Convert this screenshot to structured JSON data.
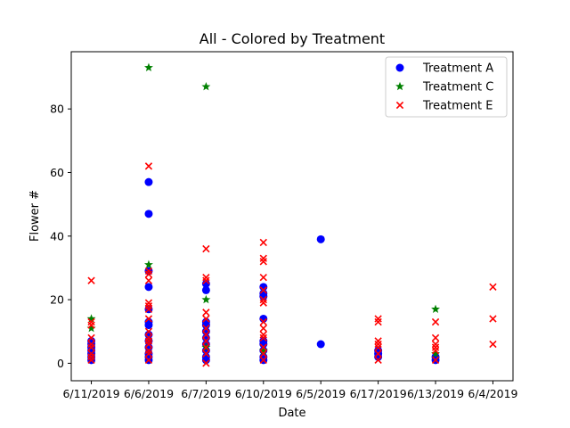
{
  "chart_data": {
    "type": "scatter",
    "title": "All - Colored by Treatment",
    "xlabel": "Date",
    "ylabel": "Flower #",
    "categories": [
      "6/11/2019",
      "6/6/2019",
      "6/7/2019",
      "6/10/2019",
      "6/5/2019",
      "6/17/2019",
      "6/13/2019",
      "6/4/2019"
    ],
    "ylim": [
      -5.5,
      98
    ],
    "yticks": [
      0,
      20,
      40,
      60,
      80
    ],
    "legend_position": "top-right",
    "grid": false,
    "series": [
      {
        "name": "Treatment A",
        "marker": "circle",
        "color": "#0000ff",
        "points": [
          [
            "6/11/2019",
            1
          ],
          [
            "6/11/2019",
            2
          ],
          [
            "6/11/2019",
            3
          ],
          [
            "6/11/2019",
            4
          ],
          [
            "6/11/2019",
            5
          ],
          [
            "6/11/2019",
            6
          ],
          [
            "6/11/2019",
            7
          ],
          [
            "6/6/2019",
            1
          ],
          [
            "6/6/2019",
            2
          ],
          [
            "6/6/2019",
            3
          ],
          [
            "6/6/2019",
            5
          ],
          [
            "6/6/2019",
            7
          ],
          [
            "6/6/2019",
            9
          ],
          [
            "6/6/2019",
            12
          ],
          [
            "6/6/2019",
            13
          ],
          [
            "6/6/2019",
            17
          ],
          [
            "6/6/2019",
            24
          ],
          [
            "6/6/2019",
            29
          ],
          [
            "6/6/2019",
            47
          ],
          [
            "6/6/2019",
            57
          ],
          [
            "6/7/2019",
            1
          ],
          [
            "6/7/2019",
            2
          ],
          [
            "6/7/2019",
            4
          ],
          [
            "6/7/2019",
            6
          ],
          [
            "6/7/2019",
            8
          ],
          [
            "6/7/2019",
            10
          ],
          [
            "6/7/2019",
            12
          ],
          [
            "6/7/2019",
            13
          ],
          [
            "6/7/2019",
            23
          ],
          [
            "6/7/2019",
            25
          ],
          [
            "6/10/2019",
            1
          ],
          [
            "6/10/2019",
            2
          ],
          [
            "6/10/2019",
            4
          ],
          [
            "6/10/2019",
            6
          ],
          [
            "6/10/2019",
            7
          ],
          [
            "6/10/2019",
            14
          ],
          [
            "6/10/2019",
            21
          ],
          [
            "6/10/2019",
            22
          ],
          [
            "6/10/2019",
            24
          ],
          [
            "6/5/2019",
            6
          ],
          [
            "6/5/2019",
            39
          ],
          [
            "6/17/2019",
            2
          ],
          [
            "6/17/2019",
            3
          ],
          [
            "6/17/2019",
            4
          ],
          [
            "6/13/2019",
            1
          ],
          [
            "6/13/2019",
            2
          ]
        ]
      },
      {
        "name": "Treatment C",
        "marker": "star",
        "color": "#008000",
        "points": [
          [
            "6/11/2019",
            11
          ],
          [
            "6/11/2019",
            14
          ],
          [
            "6/6/2019",
            31
          ],
          [
            "6/6/2019",
            93
          ],
          [
            "6/7/2019",
            5
          ],
          [
            "6/7/2019",
            20
          ],
          [
            "6/7/2019",
            87
          ],
          [
            "6/10/2019",
            4
          ],
          [
            "6/13/2019",
            3
          ],
          [
            "6/13/2019",
            17
          ]
        ]
      },
      {
        "name": "Treatment E",
        "marker": "x",
        "color": "#ff0000",
        "points": [
          [
            "6/11/2019",
            1
          ],
          [
            "6/11/2019",
            2
          ],
          [
            "6/11/2019",
            3
          ],
          [
            "6/11/2019",
            5
          ],
          [
            "6/11/2019",
            6
          ],
          [
            "6/11/2019",
            8
          ],
          [
            "6/11/2019",
            12
          ],
          [
            "6/11/2019",
            13
          ],
          [
            "6/11/2019",
            26
          ],
          [
            "6/6/2019",
            1
          ],
          [
            "6/6/2019",
            3
          ],
          [
            "6/6/2019",
            4
          ],
          [
            "6/6/2019",
            6
          ],
          [
            "6/6/2019",
            7
          ],
          [
            "6/6/2019",
            8
          ],
          [
            "6/6/2019",
            10
          ],
          [
            "6/6/2019",
            14
          ],
          [
            "6/6/2019",
            17
          ],
          [
            "6/6/2019",
            18
          ],
          [
            "6/6/2019",
            19
          ],
          [
            "6/6/2019",
            26
          ],
          [
            "6/6/2019",
            28
          ],
          [
            "6/6/2019",
            29
          ],
          [
            "6/6/2019",
            62
          ],
          [
            "6/7/2019",
            0
          ],
          [
            "6/7/2019",
            3
          ],
          [
            "6/7/2019",
            5
          ],
          [
            "6/7/2019",
            7
          ],
          [
            "6/7/2019",
            9
          ],
          [
            "6/7/2019",
            11
          ],
          [
            "6/7/2019",
            14
          ],
          [
            "6/7/2019",
            16
          ],
          [
            "6/7/2019",
            26
          ],
          [
            "6/7/2019",
            27
          ],
          [
            "6/7/2019",
            36
          ],
          [
            "6/10/2019",
            1
          ],
          [
            "6/10/2019",
            3
          ],
          [
            "6/10/2019",
            5
          ],
          [
            "6/10/2019",
            8
          ],
          [
            "6/10/2019",
            9
          ],
          [
            "6/10/2019",
            11
          ],
          [
            "6/10/2019",
            13
          ],
          [
            "6/10/2019",
            19
          ],
          [
            "6/10/2019",
            20
          ],
          [
            "6/10/2019",
            23
          ],
          [
            "6/10/2019",
            27
          ],
          [
            "6/10/2019",
            32
          ],
          [
            "6/10/2019",
            33
          ],
          [
            "6/10/2019",
            38
          ],
          [
            "6/17/2019",
            1
          ],
          [
            "6/17/2019",
            3
          ],
          [
            "6/17/2019",
            5
          ],
          [
            "6/17/2019",
            6
          ],
          [
            "6/17/2019",
            7
          ],
          [
            "6/17/2019",
            13
          ],
          [
            "6/17/2019",
            14
          ],
          [
            "6/13/2019",
            1
          ],
          [
            "6/13/2019",
            4
          ],
          [
            "6/13/2019",
            5
          ],
          [
            "6/13/2019",
            6
          ],
          [
            "6/13/2019",
            8
          ],
          [
            "6/13/2019",
            13
          ],
          [
            "6/4/2019",
            6
          ],
          [
            "6/4/2019",
            14
          ],
          [
            "6/4/2019",
            24
          ]
        ]
      }
    ]
  }
}
